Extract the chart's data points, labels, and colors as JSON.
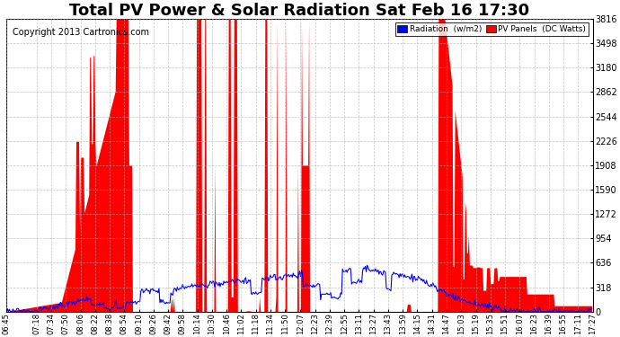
{
  "title": "Total PV Power & Solar Radiation Sat Feb 16 17:30",
  "copyright": "Copyright 2013 Cartronics.com",
  "legend_labels": [
    "Radiation  (w/m2)",
    "PV Panels  (DC Watts)"
  ],
  "legend_colors": [
    "blue",
    "red"
  ],
  "y_ticks": [
    0.0,
    318.0,
    636.1,
    954.1,
    1272.2,
    1590.2,
    1908.2,
    2226.3,
    2544.3,
    2862.3,
    3180.4,
    3498.4,
    3816.5
  ],
  "y_max": 3816.5,
  "y_min": 0.0,
  "background_color": "#ffffff",
  "plot_bg_color": "#ffffff",
  "grid_color": "#aaaaaa",
  "title_fontsize": 13,
  "copyright_fontsize": 7,
  "radiation_color": "blue",
  "pv_color": "red",
  "time_labels": [
    "06:45",
    "07:18",
    "07:34",
    "07:50",
    "08:06",
    "08:22",
    "08:38",
    "08:54",
    "09:10",
    "09:26",
    "09:42",
    "09:58",
    "10:14",
    "10:30",
    "10:46",
    "11:02",
    "11:18",
    "11:34",
    "11:50",
    "12:07",
    "12:23",
    "12:39",
    "12:55",
    "13:11",
    "13:27",
    "13:43",
    "13:59",
    "14:15",
    "14:31",
    "14:47",
    "15:03",
    "15:19",
    "15:35",
    "15:51",
    "16:07",
    "16:23",
    "16:39",
    "16:55",
    "17:11",
    "17:27"
  ]
}
